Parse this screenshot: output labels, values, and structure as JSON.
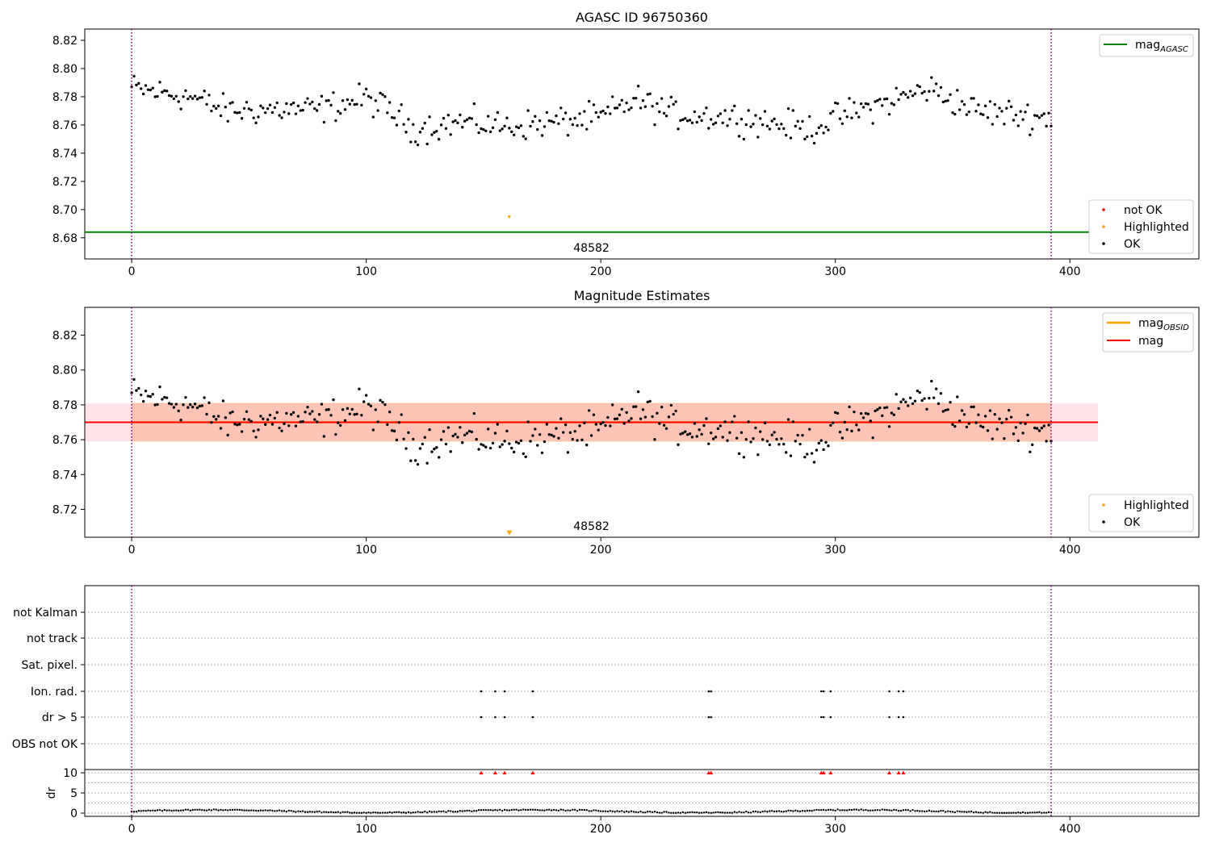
{
  "chart_data": [
    {
      "type": "scatter",
      "title": "AGASC ID 96750360",
      "xlim": [
        -20,
        455
      ],
      "ylim": [
        8.665,
        8.828
      ],
      "xticks": [
        0,
        100,
        200,
        300,
        400
      ],
      "yticks": [
        8.68,
        8.7,
        8.72,
        8.74,
        8.76,
        8.78,
        8.8,
        8.82
      ],
      "obsid_label": "48582",
      "obsid_label_x": 196,
      "obsid_bounds": [
        0,
        392
      ],
      "mag_agasc": 8.684,
      "highlighted": [
        {
          "x": 161,
          "y": 8.695
        }
      ],
      "legend_lines": [
        {
          "label": "mag",
          "sub": "AGASC",
          "color": "#008000"
        }
      ],
      "legend_points": [
        {
          "label": "not OK",
          "color": "#ff0000"
        },
        {
          "label": "Highlighted",
          "color": "#ffa500"
        },
        {
          "label": "OK",
          "color": "#000000"
        }
      ]
    },
    {
      "type": "scatter",
      "title": "Magnitude Estimates",
      "xlim": [
        -20,
        455
      ],
      "ylim": [
        8.704,
        8.836
      ],
      "xticks": [
        0,
        100,
        200,
        300,
        400
      ],
      "yticks": [
        8.72,
        8.74,
        8.76,
        8.78,
        8.8,
        8.82
      ],
      "obsid_label": "48582",
      "obsid_label_x": 196,
      "obsid_bounds": [
        0,
        392
      ],
      "mag": 8.77,
      "mag_band": [
        8.759,
        8.781
      ],
      "band_x": [
        -20,
        412
      ],
      "mag_obsid": 8.77,
      "mag_obsid_band": [
        8.759,
        8.781
      ],
      "obsid_band_x": [
        0,
        392
      ],
      "highlighted": [
        {
          "x": 161,
          "y": 8.706
        }
      ],
      "legend_lines": [
        {
          "label": "mag",
          "sub": "OBSID",
          "color": "#ffa500"
        },
        {
          "label": "mag",
          "sub": "",
          "color": "#ff0000"
        }
      ],
      "legend_points": [
        {
          "label": "Highlighted",
          "color": "#ffa500"
        },
        {
          "label": "OK",
          "color": "#000000"
        }
      ]
    },
    {
      "type": "scatter",
      "title": "",
      "xlim": [
        -20,
        455
      ],
      "xticks": [
        0,
        100,
        200,
        300,
        400
      ],
      "flag_rows": [
        "not Kalman",
        "not track",
        "Sat. pixel.",
        "Ion. rad.",
        "dr > 5",
        "OBS not OK"
      ],
      "flagged_x": {
        "Ion. rad.": [
          149,
          155,
          159,
          171,
          246,
          247,
          294,
          295,
          298,
          323,
          327,
          329
        ],
        "dr > 5": [
          149,
          155,
          159,
          171,
          246,
          247,
          294,
          295,
          298,
          323,
          327,
          329
        ]
      }
    },
    {
      "type": "scatter",
      "title": "",
      "ylabel": "dr",
      "xlim": [
        -20,
        455
      ],
      "ylim": [
        -0.8,
        10.8
      ],
      "xticks": [
        0,
        100,
        200,
        300,
        400
      ],
      "yticks": [
        0,
        5,
        10
      ],
      "clip_value": 10,
      "clipped_x": [
        149,
        155,
        159,
        171,
        246,
        247,
        294,
        295,
        298,
        323,
        327,
        329
      ]
    }
  ],
  "series_gen": {
    "n": 393,
    "base": [
      [
        0,
        8.786
      ],
      [
        25,
        8.78
      ],
      [
        40,
        8.77
      ],
      [
        60,
        8.771
      ],
      [
        80,
        8.771
      ],
      [
        100,
        8.779
      ],
      [
        110,
        8.77
      ],
      [
        120,
        8.757
      ],
      [
        140,
        8.762
      ],
      [
        160,
        8.759
      ],
      [
        180,
        8.762
      ],
      [
        200,
        8.765
      ],
      [
        215,
        8.778
      ],
      [
        230,
        8.768
      ],
      [
        260,
        8.765
      ],
      [
        290,
        8.757
      ],
      [
        300,
        8.765
      ],
      [
        320,
        8.775
      ],
      [
        340,
        8.786
      ],
      [
        360,
        8.77
      ],
      [
        392,
        8.765
      ]
    ],
    "noise": 0.0065
  },
  "colors": {
    "agasc_line": "#008000",
    "mag_line": "#ff0000",
    "mag_band": "#ffc0cb",
    "obsid_line": "#ffa500",
    "obsid_band": "#ffa07a",
    "bounds": "#800080",
    "ok": "#000000",
    "highlighted": "#ffa500",
    "not_ok": "#ff0000"
  }
}
